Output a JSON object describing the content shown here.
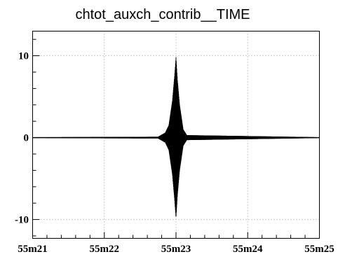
{
  "chart_data": {
    "type": "line",
    "title": "chtot_auxch_contrib__TIME",
    "xlabel": "",
    "ylabel": "",
    "x_tick_labels": [
      "55m21",
      "55m22",
      "55m23",
      "55m24",
      "55m25"
    ],
    "x_ticks_minutes": [
      55.35,
      55.3667,
      55.3833,
      55.4,
      55.4167
    ],
    "xlim_seconds": [
      3321,
      3325
    ],
    "ylim": [
      -12.3,
      13.0
    ],
    "y_ticks": [
      -10,
      0,
      10
    ],
    "y_tick_labels": [
      "-10",
      "0",
      "10"
    ],
    "grid": true,
    "line_color": "#000000",
    "series": [
      {
        "name": "",
        "envelope": {
          "x_seconds": [
            3321.0,
            3322.75,
            3322.85,
            3322.9,
            3322.95,
            3322.98,
            3323.0,
            3323.02,
            3323.05,
            3323.1,
            3323.15,
            3325.0
          ],
          "upper": [
            0.05,
            0.1,
            0.6,
            1.5,
            4.5,
            7.5,
            9.8,
            7.0,
            4.0,
            1.0,
            0.3,
            0.05
          ],
          "lower": [
            -0.05,
            -0.1,
            -0.6,
            -1.5,
            -4.5,
            -7.5,
            -9.8,
            -7.0,
            -4.0,
            -1.0,
            -0.3,
            -0.05
          ]
        }
      }
    ]
  }
}
